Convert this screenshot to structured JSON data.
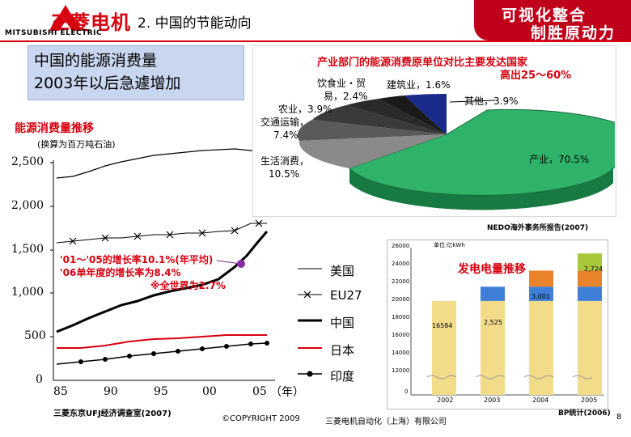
{
  "header": {
    "logo_cn": "三菱电机",
    "logo_en": "MITSUBISHI ELECTRIC",
    "title": "2. 中国的节能动向",
    "banner_line1": "可视化整合",
    "banner_line2": "制胜原动力",
    "brand_color": "#d7000f"
  },
  "heading": {
    "line1": "中国的能源消费量",
    "line2": "2003年以后急遽增加"
  },
  "pie": {
    "title_line1": "产业部门的能源消费原单位对比主要发达国家",
    "title_line2": "高出25～60%",
    "source": "NEDO海外事务所报告(2007)",
    "slices": [
      {
        "label": "产业，70.5%",
        "value": 70.5,
        "color": "#2fb36b"
      },
      {
        "label": "生活消费，10.5%",
        "value": 10.5,
        "color": "#8a8a8a"
      },
      {
        "label": "交通运输，7.4%",
        "value": 7.4,
        "color": "#5a5a5a"
      },
      {
        "label": "农业，3.9%",
        "value": 3.9,
        "color": "#3a3a3a"
      },
      {
        "label": "饮食业・贸易，2.4%",
        "value": 2.4,
        "color": "#2a2a2a"
      },
      {
        "label": "建筑业，1.6%",
        "value": 1.6,
        "color": "#1a1a1a"
      },
      {
        "label": "其他，3.9%",
        "value": 3.9,
        "color": "#1a2a8a"
      }
    ],
    "labels": {
      "industry": "产业，70.5%",
      "living1": "生活消费，",
      "living2": "10.5%",
      "transport1": "交通运输，",
      "transport2": "7.4%",
      "agri": "农业，3.9%",
      "food1": "饮食业・贸",
      "food2": "易，2.4%",
      "construction": "建筑业，1.6%",
      "other": "其他，3.9%"
    }
  },
  "main_chart": {
    "trend_label": "能源消费量推移",
    "unit_note": "(换算为百万吨石油)",
    "y_ticks": [
      "2,500",
      "2,000",
      "1,500",
      "1,000",
      "500",
      "0"
    ],
    "x_ticks": [
      "85",
      "90",
      "95",
      "00",
      "05"
    ],
    "x_unit": "（年）",
    "growth_line1": "'01～'05的增长率10.1%(年平均)",
    "growth_line2": "'06单年度的增长率为8.4%",
    "growth_line3": "※全世界为2.7%",
    "legend": [
      "美国",
      "EU27",
      "中国",
      "日本",
      "印度"
    ],
    "source": "三菱东京UFJ经济调查室(2007)",
    "series_colors": {
      "美国": "#000000",
      "EU27": "#000000",
      "中国": "#000000",
      "日本": "#d7000f",
      "印度": "#000000"
    }
  },
  "chart_data": {
    "type": "bar",
    "title": "发电电量推移",
    "unit": "单位:亿kWh",
    "categories": [
      "2002",
      "2003",
      "2004",
      "2005"
    ],
    "values": [
      16.584,
      19.106,
      21.944,
      24.975
    ],
    "series_labels": {
      "2002": "16584",
      "2003": "3,001",
      "2004": "2,525",
      "2005": "2,724"
    },
    "y_ticks": [
      "26000",
      "24000",
      "22000",
      "20000",
      "18000",
      "16000",
      "14000",
      "12000",
      "0"
    ],
    "source": "BP统计(2006)"
  },
  "footer": {
    "copyright": "©COPYRIGHT 2009",
    "company": "三菱电机自动化（上海）有限公司",
    "page": "8"
  }
}
